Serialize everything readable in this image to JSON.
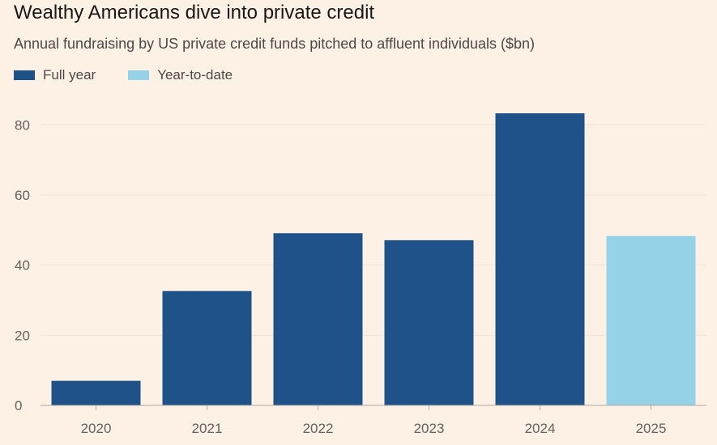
{
  "chart_data": {
    "type": "bar",
    "title": "Wealthy Americans dive into private credit",
    "subtitle": "Annual fundraising by US private credit funds pitched to affluent individuals ($bn)",
    "xlabel": "",
    "ylabel": "",
    "categories": [
      "2020",
      "2021",
      "2022",
      "2023",
      "2024",
      "2025"
    ],
    "values": [
      7,
      32.6,
      49.1,
      47.1,
      83.3,
      48.3
    ],
    "value_types": [
      "full",
      "full",
      "full",
      "full",
      "full",
      "ytd"
    ],
    "legend": [
      {
        "key": "full",
        "label": "Full year",
        "color": "#1f5289"
      },
      {
        "key": "ytd",
        "label": "Year-to-date",
        "color": "#96d2e7"
      }
    ],
    "ylim": [
      0,
      90
    ],
    "yticks": [
      0,
      20,
      40,
      60,
      80
    ],
    "grid": true,
    "legend_position": "top-left"
  }
}
